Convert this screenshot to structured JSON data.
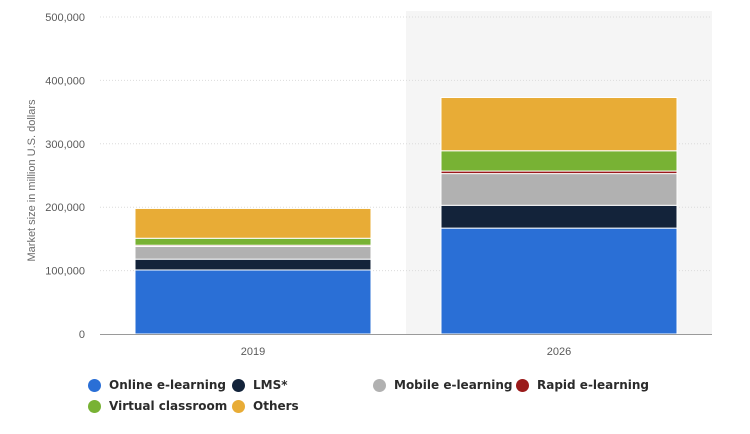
{
  "chart_data": {
    "type": "bar",
    "stacked": true,
    "categories": [
      "2019",
      "2026"
    ],
    "ylabel": "Market size in million U.S. dollars",
    "ylim": [
      0,
      500000
    ],
    "yticks": [
      "0",
      "100,000",
      "200,000",
      "300,000",
      "400,000",
      "500,000"
    ],
    "ytick_values": [
      0,
      100000,
      200000,
      300000,
      400000,
      500000
    ],
    "grid": true,
    "legend_position": "bottom",
    "highlight_category": "2026",
    "series": [
      {
        "name": "Online e-learning",
        "color": "#2a6fd6",
        "values": [
          101000,
          167000
        ]
      },
      {
        "name": "LMS*",
        "color": "#13233a",
        "values": [
          17000,
          36000
        ]
      },
      {
        "name": "Mobile e-learning",
        "color": "#b1b1b1",
        "values": [
          20000,
          50000
        ]
      },
      {
        "name": "Rapid e-learning",
        "color": "#9a1a1a",
        "values": [
          2000,
          4000
        ]
      },
      {
        "name": "Virtual classroom",
        "color": "#78b234",
        "values": [
          11000,
          32000
        ]
      },
      {
        "name": "Others",
        "color": "#e8ac36",
        "values": [
          47000,
          84000
        ]
      }
    ]
  }
}
